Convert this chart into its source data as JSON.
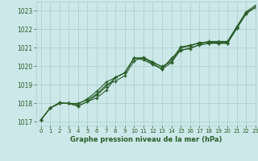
{
  "title": "Graphe pression niveau de la mer (hPa)",
  "bg_color": "#cce8e8",
  "grid_color": "#aacece",
  "line_color": "#2a5e2a",
  "xlim": [
    -0.5,
    23
  ],
  "ylim": [
    1016.8,
    1023.5
  ],
  "yticks": [
    1017,
    1018,
    1019,
    1020,
    1021,
    1022,
    1023
  ],
  "xticks": [
    0,
    1,
    2,
    3,
    4,
    5,
    6,
    7,
    8,
    9,
    10,
    11,
    12,
    13,
    14,
    15,
    16,
    17,
    18,
    19,
    20,
    21,
    22,
    23
  ],
  "series": [
    [
      1017.1,
      1017.75,
      1018.0,
      1018.0,
      1018.0,
      1018.2,
      1018.5,
      1019.0,
      1019.2,
      1019.5,
      1020.3,
      1020.5,
      1020.2,
      1020.0,
      1020.25,
      1021.0,
      1021.1,
      1021.3,
      1021.3,
      1021.3,
      1021.3,
      1022.1,
      1022.9,
      1023.2
    ],
    [
      1017.1,
      1017.75,
      1018.0,
      1018.0,
      1017.85,
      1018.1,
      1018.3,
      1018.7,
      1019.4,
      1019.65,
      1020.45,
      1020.45,
      1020.15,
      1019.85,
      1020.45,
      1020.85,
      1021.0,
      1021.15,
      1021.25,
      1021.25,
      1021.25,
      1022.05,
      1022.85,
      1023.2
    ],
    [
      1017.1,
      1017.75,
      1018.0,
      1018.0,
      1017.85,
      1018.1,
      1018.45,
      1018.9,
      1019.4,
      1019.65,
      1020.45,
      1020.35,
      1020.1,
      1019.85,
      1020.2,
      1020.9,
      1020.95,
      1021.2,
      1021.25,
      1021.25,
      1021.25,
      1022.05,
      1022.85,
      1023.2
    ],
    [
      1017.1,
      1017.75,
      1018.05,
      1018.0,
      1017.95,
      1018.25,
      1018.65,
      1019.15,
      1019.4,
      1019.65,
      1020.45,
      1020.45,
      1020.25,
      1019.95,
      1020.35,
      1021.05,
      1021.15,
      1021.25,
      1021.35,
      1021.35,
      1021.35,
      1022.15,
      1022.95,
      1023.3
    ]
  ]
}
